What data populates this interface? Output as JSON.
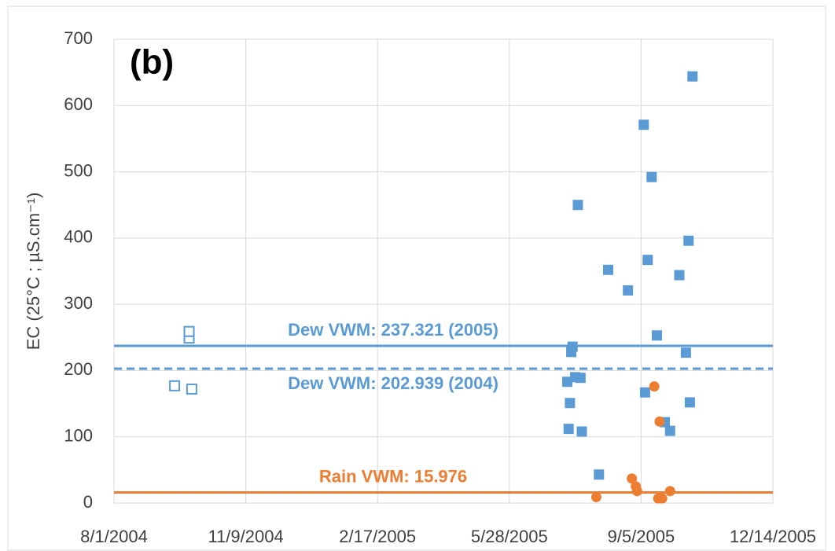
{
  "chart_data": {
    "type": "scatter",
    "annotation": "(b)",
    "y_label": "EC (25°C ; µS.cm⁻¹)",
    "xlim": [
      "8/1/2004",
      "12/14/2005"
    ],
    "xticks": [
      "8/1/2004",
      "11/9/2004",
      "2/17/2005",
      "5/28/2005",
      "9/5/2005",
      "12/14/2005"
    ],
    "ylim": [
      0,
      700
    ],
    "yticks": [
      0,
      100,
      200,
      300,
      400,
      500,
      600,
      700
    ],
    "grid": true,
    "series": [
      {
        "color": "#5b9bd5",
        "marker": "open-square",
        "x": [
          "9/16/2004",
          "9/27/2004",
          "9/27/2004",
          "9/29/2004"
        ],
        "values": [
          177,
          249,
          259,
          172
        ]
      },
      {
        "color": "#5b9bd5",
        "marker": "square",
        "x": [
          "7/11/2005",
          "7/13/2005",
          "7/12/2005",
          "7/15/2005",
          "7/14/2005",
          "7/19/2005",
          "7/17/2005",
          "7/21/2005",
          "7/22/2005",
          "8/4/2005",
          "8/11/2005",
          "8/26/2005",
          "9/7/2005",
          "9/8/2005",
          "9/10/2005",
          "9/13/2005",
          "9/17/2005",
          "9/23/2005",
          "9/27/2005",
          "10/4/2005",
          "10/9/2005",
          "10/11/2005",
          "10/12/2005",
          "10/14/2005"
        ],
        "values": [
          183,
          151,
          112,
          236,
          228,
          450,
          190,
          189,
          108,
          43,
          352,
          321,
          571,
          167,
          367,
          492,
          253,
          122,
          109,
          344,
          227,
          396,
          152,
          644
        ]
      },
      {
        "color": "#ed7d31",
        "marker": "circle",
        "x": [
          "8/2/2005",
          "8/29/2005",
          "9/1/2005",
          "9/2/2005",
          "9/15/2005",
          "9/19/2005",
          "9/18/2005",
          "9/21/2005",
          "9/27/2005"
        ],
        "values": [
          9,
          37,
          25,
          18,
          176,
          123,
          7,
          7,
          18
        ]
      }
    ],
    "reference_lines": [
      {
        "value": 237.321,
        "label": "Dew VWM: 237.321 (2005)",
        "color": "#5b9bd5",
        "dashed": false,
        "label_side": "above"
      },
      {
        "value": 202.939,
        "label": "Dew VWM: 202.939 (2004)",
        "color": "#5b9bd5",
        "dashed": true,
        "label_side": "below"
      },
      {
        "value": 15.976,
        "label": "Rain VWM: 15.976",
        "color": "#ed7d31",
        "dashed": false,
        "label_side": "above"
      }
    ]
  }
}
